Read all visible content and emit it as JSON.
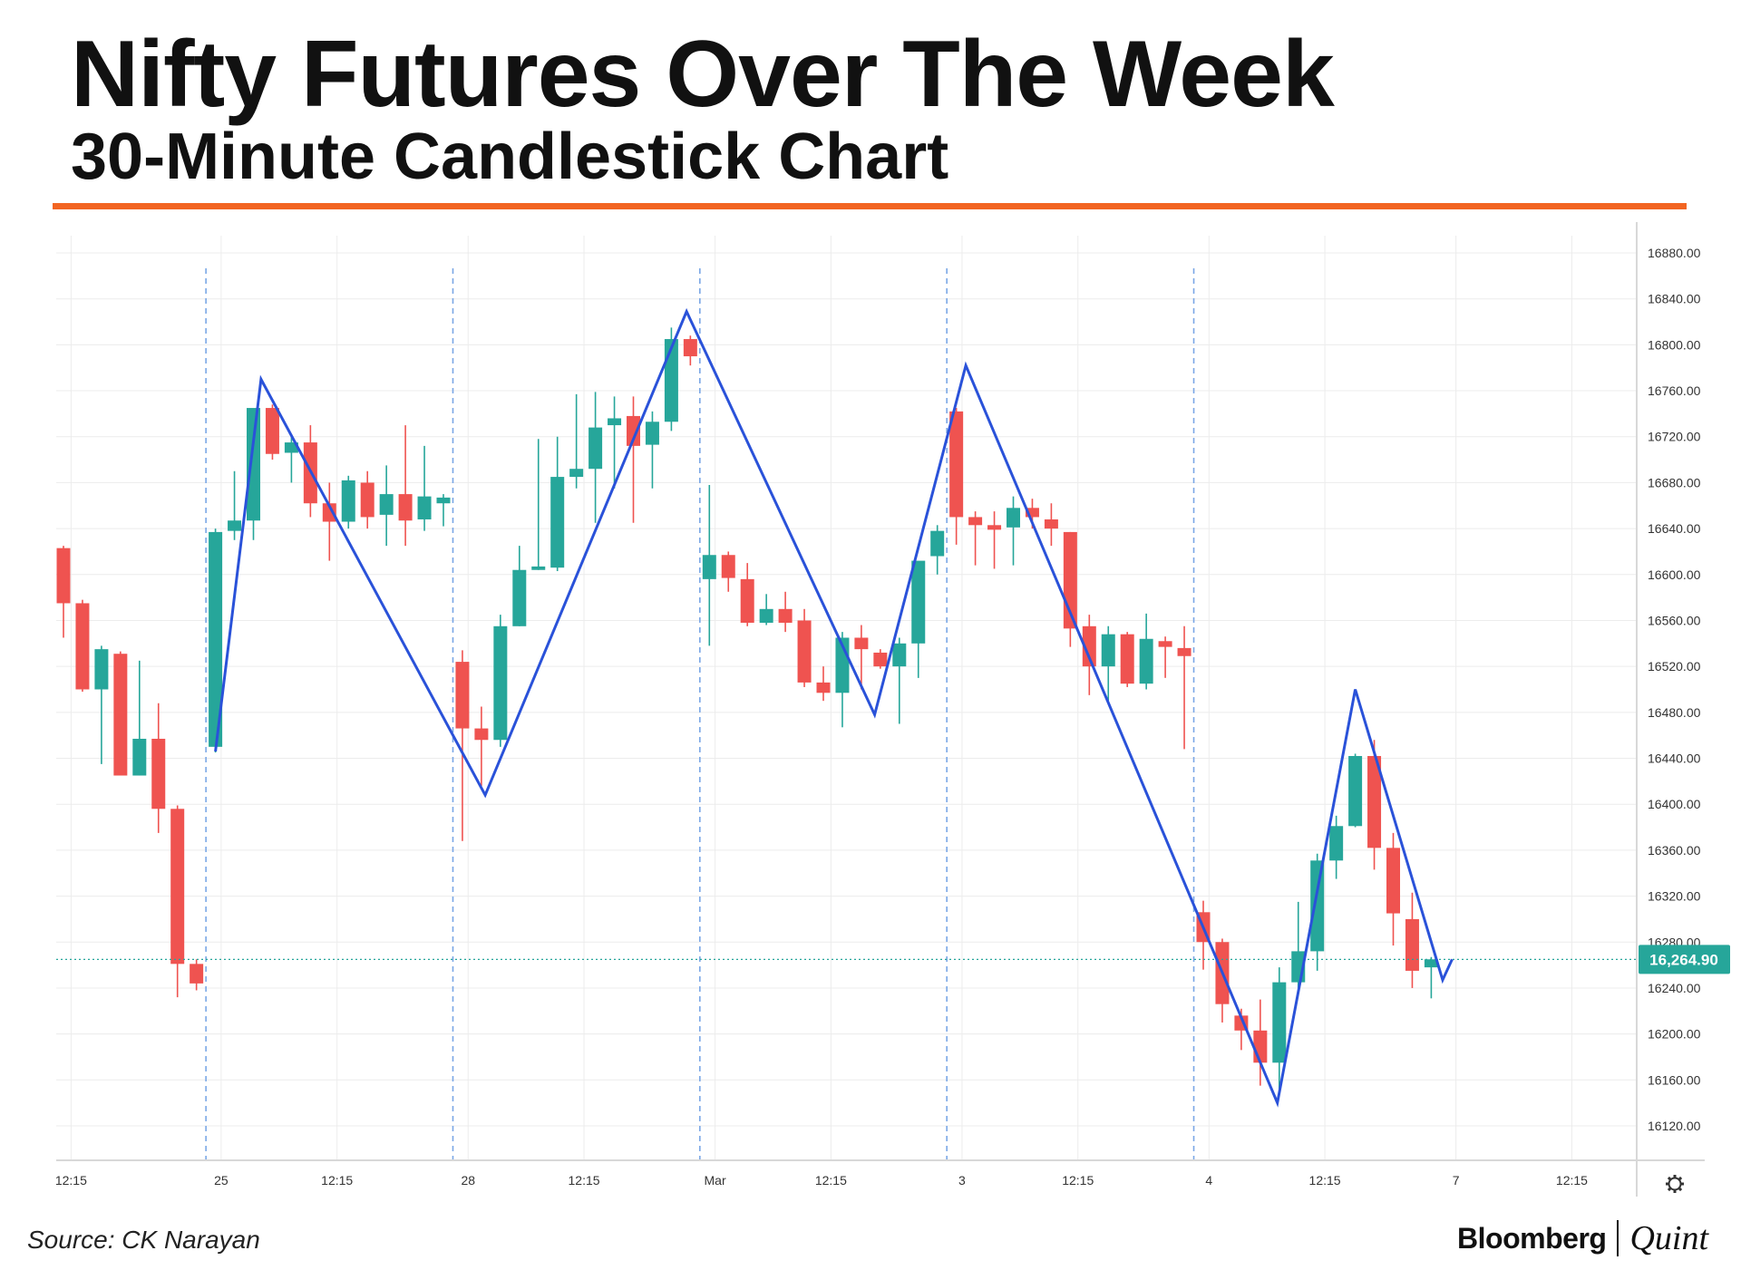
{
  "header": {
    "title": "Nifty Futures Over The Week",
    "subtitle": "30-Minute Candlestick Chart"
  },
  "footer": {
    "source": "Source: CK Narayan",
    "brand_primary": "Bloomberg",
    "brand_secondary": "Quint"
  },
  "colors": {
    "accent": "#f26522",
    "up": "#26a69a",
    "down": "#ef5350",
    "zigzag": "#2a52d9",
    "grid": "#ececec",
    "session": "#7aa7e6",
    "price_badge": "#26a69a"
  },
  "settings_icon": "gear-icon",
  "chart_data": {
    "type": "candlestick",
    "title": "",
    "ylim": [
      16090,
      16895
    ],
    "y_ticks": [
      "16880.00",
      "16840.00",
      "16800.00",
      "16760.00",
      "16720.00",
      "16680.00",
      "16640.00",
      "16600.00",
      "16560.00",
      "16520.00",
      "16480.00",
      "16440.00",
      "16400.00",
      "16360.00",
      "16320.00",
      "16280.00",
      "16240.00",
      "16200.00",
      "16160.00",
      "16120.00"
    ],
    "x_ticks": [
      {
        "label": "12:15",
        "index": 0.4
      },
      {
        "label": "25",
        "index": 8.3
      },
      {
        "label": "12:15",
        "index": 14.4
      },
      {
        "label": "28",
        "index": 21.3
      },
      {
        "label": "12:15",
        "index": 27.4
      },
      {
        "label": "Mar",
        "index": 34.3
      },
      {
        "label": "12:15",
        "index": 40.4
      },
      {
        "label": "3",
        "index": 47.3
      },
      {
        "label": "12:15",
        "index": 53.4
      },
      {
        "label": "4",
        "index": 60.3
      },
      {
        "label": "12:15",
        "index": 66.4
      },
      {
        "label": "7",
        "index": 73.3
      },
      {
        "label": "12:15",
        "index": 79.4
      }
    ],
    "session_breaks": [
      7.5,
      20.5,
      33.5,
      46.5,
      59.5
    ],
    "last_price": 16264.9,
    "last_price_label": "16,264.90",
    "candles": [
      {
        "o": 16623,
        "h": 16625,
        "l": 16545,
        "c": 16575
      },
      {
        "o": 16575,
        "h": 16578,
        "l": 16498,
        "c": 16500
      },
      {
        "o": 16500,
        "h": 16538,
        "l": 16435,
        "c": 16535
      },
      {
        "o": 16531,
        "h": 16533,
        "l": 16425,
        "c": 16425
      },
      {
        "o": 16425,
        "h": 16525,
        "l": 16425,
        "c": 16457
      },
      {
        "o": 16457,
        "h": 16488,
        "l": 16375,
        "c": 16396
      },
      {
        "o": 16396,
        "h": 16399,
        "l": 16232,
        "c": 16261
      },
      {
        "o": 16261,
        "h": 16265,
        "l": 16238,
        "c": 16244
      },
      {
        "o": 16450,
        "h": 16640,
        "l": 16445,
        "c": 16637
      },
      {
        "o": 16638,
        "h": 16690,
        "l": 16630,
        "c": 16647
      },
      {
        "o": 16647,
        "h": 16742,
        "l": 16630,
        "c": 16745
      },
      {
        "o": 16745,
        "h": 16748,
        "l": 16700,
        "c": 16705
      },
      {
        "o": 16706,
        "h": 16720,
        "l": 16680,
        "c": 16715
      },
      {
        "o": 16715,
        "h": 16730,
        "l": 16650,
        "c": 16662
      },
      {
        "o": 16662,
        "h": 16680,
        "l": 16612,
        "c": 16646
      },
      {
        "o": 16646,
        "h": 16686,
        "l": 16640,
        "c": 16682
      },
      {
        "o": 16680,
        "h": 16690,
        "l": 16640,
        "c": 16650
      },
      {
        "o": 16652,
        "h": 16695,
        "l": 16625,
        "c": 16670
      },
      {
        "o": 16670,
        "h": 16730,
        "l": 16625,
        "c": 16647
      },
      {
        "o": 16648,
        "h": 16712,
        "l": 16638,
        "c": 16668
      },
      {
        "o": 16662,
        "h": 16670,
        "l": 16642,
        "c": 16667
      },
      {
        "o": 16524,
        "h": 16534,
        "l": 16368,
        "c": 16466
      },
      {
        "o": 16466,
        "h": 16485,
        "l": 16416,
        "c": 16456
      },
      {
        "o": 16456,
        "h": 16565,
        "l": 16450,
        "c": 16555
      },
      {
        "o": 16555,
        "h": 16625,
        "l": 16555,
        "c": 16604
      },
      {
        "o": 16604,
        "h": 16718,
        "l": 16604,
        "c": 16607
      },
      {
        "o": 16606,
        "h": 16720,
        "l": 16603,
        "c": 16685
      },
      {
        "o": 16685,
        "h": 16757,
        "l": 16675,
        "c": 16692
      },
      {
        "o": 16692,
        "h": 16759,
        "l": 16645,
        "c": 16728
      },
      {
        "o": 16730,
        "h": 16755,
        "l": 16675,
        "c": 16736
      },
      {
        "o": 16738,
        "h": 16755,
        "l": 16645,
        "c": 16712
      },
      {
        "o": 16713,
        "h": 16742,
        "l": 16675,
        "c": 16733
      },
      {
        "o": 16733,
        "h": 16815,
        "l": 16725,
        "c": 16805
      },
      {
        "o": 16805,
        "h": 16808,
        "l": 16782,
        "c": 16790
      },
      {
        "o": 16596,
        "h": 16678,
        "l": 16538,
        "c": 16617
      },
      {
        "o": 16617,
        "h": 16620,
        "l": 16585,
        "c": 16597
      },
      {
        "o": 16596,
        "h": 16610,
        "l": 16555,
        "c": 16558
      },
      {
        "o": 16558,
        "h": 16583,
        "l": 16556,
        "c": 16570
      },
      {
        "o": 16570,
        "h": 16585,
        "l": 16550,
        "c": 16558
      },
      {
        "o": 16560,
        "h": 16570,
        "l": 16502,
        "c": 16506
      },
      {
        "o": 16506,
        "h": 16520,
        "l": 16490,
        "c": 16497
      },
      {
        "o": 16497,
        "h": 16550,
        "l": 16467,
        "c": 16545
      },
      {
        "o": 16545,
        "h": 16556,
        "l": 16500,
        "c": 16535
      },
      {
        "o": 16532,
        "h": 16535,
        "l": 16518,
        "c": 16520
      },
      {
        "o": 16520,
        "h": 16545,
        "l": 16470,
        "c": 16540
      },
      {
        "o": 16540,
        "h": 16604,
        "l": 16510,
        "c": 16612
      },
      {
        "o": 16616,
        "h": 16643,
        "l": 16600,
        "c": 16638
      },
      {
        "o": 16742,
        "h": 16745,
        "l": 16626,
        "c": 16650
      },
      {
        "o": 16650,
        "h": 16655,
        "l": 16608,
        "c": 16643
      },
      {
        "o": 16643,
        "h": 16655,
        "l": 16605,
        "c": 16639
      },
      {
        "o": 16641,
        "h": 16668,
        "l": 16608,
        "c": 16658
      },
      {
        "o": 16658,
        "h": 16666,
        "l": 16640,
        "c": 16650
      },
      {
        "o": 16648,
        "h": 16662,
        "l": 16625,
        "c": 16640
      },
      {
        "o": 16637,
        "h": 16637,
        "l": 16537,
        "c": 16553
      },
      {
        "o": 16555,
        "h": 16565,
        "l": 16495,
        "c": 16520
      },
      {
        "o": 16520,
        "h": 16555,
        "l": 16490,
        "c": 16548
      },
      {
        "o": 16548,
        "h": 16550,
        "l": 16502,
        "c": 16505
      },
      {
        "o": 16505,
        "h": 16566,
        "l": 16500,
        "c": 16544
      },
      {
        "o": 16542,
        "h": 16546,
        "l": 16510,
        "c": 16537
      },
      {
        "o": 16536,
        "h": 16555,
        "l": 16448,
        "c": 16529
      },
      {
        "o": 16306,
        "h": 16316,
        "l": 16256,
        "c": 16280
      },
      {
        "o": 16280,
        "h": 16283,
        "l": 16210,
        "c": 16226
      },
      {
        "o": 16216,
        "h": 16222,
        "l": 16186,
        "c": 16203
      },
      {
        "o": 16203,
        "h": 16230,
        "l": 16155,
        "c": 16175
      },
      {
        "o": 16175,
        "h": 16258,
        "l": 16150,
        "c": 16245
      },
      {
        "o": 16245,
        "h": 16315,
        "l": 16240,
        "c": 16272
      },
      {
        "o": 16272,
        "h": 16357,
        "l": 16255,
        "c": 16351
      },
      {
        "o": 16351,
        "h": 16390,
        "l": 16335,
        "c": 16381
      },
      {
        "o": 16381,
        "h": 16444,
        "l": 16380,
        "c": 16442
      },
      {
        "o": 16442,
        "h": 16456,
        "l": 16343,
        "c": 16362
      },
      {
        "o": 16362,
        "h": 16375,
        "l": 16277,
        "c": 16305
      },
      {
        "o": 16300,
        "h": 16323,
        "l": 16240,
        "c": 16255
      },
      {
        "o": 16258,
        "h": 16267,
        "l": 16231,
        "c": 16265
      }
    ],
    "zigzag": [
      {
        "index": 8.0,
        "price": 16446
      },
      {
        "index": 10.4,
        "price": 16770
      },
      {
        "index": 22.2,
        "price": 16408
      },
      {
        "index": 32.8,
        "price": 16829
      },
      {
        "index": 42.7,
        "price": 16478
      },
      {
        "index": 47.5,
        "price": 16782
      },
      {
        "index": 63.9,
        "price": 16140
      },
      {
        "index": 68.0,
        "price": 16500
      },
      {
        "index": 72.6,
        "price": 16247
      },
      {
        "index": 73.1,
        "price": 16265
      }
    ]
  }
}
